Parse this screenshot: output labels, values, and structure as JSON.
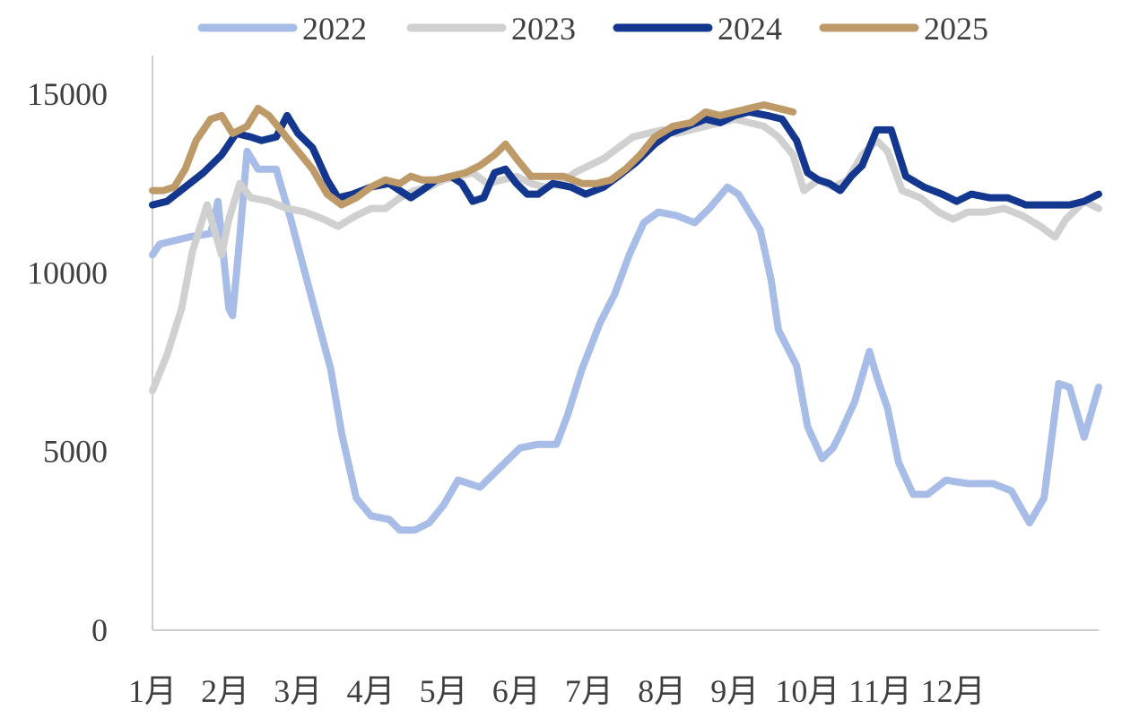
{
  "chart_data": {
    "type": "line",
    "title": "",
    "xlabel": "",
    "ylabel": "",
    "ylim": [
      0,
      15000
    ],
    "yticks": [
      "15000",
      "10000",
      "5000",
      "0"
    ],
    "x_categories": [
      "1月",
      "2月",
      "3月",
      "4月",
      "5月",
      "6月",
      "7月",
      "8月",
      "9月",
      "10月",
      "11月",
      "12月"
    ],
    "grid": false,
    "legend_position": "top",
    "series": [
      {
        "name": "2022",
        "color": "#a7bce6",
        "points": [
          [
            0,
            10500
          ],
          [
            0.1,
            10800
          ],
          [
            0.3,
            10900
          ],
          [
            0.5,
            11000
          ],
          [
            0.8,
            11100
          ],
          [
            0.9,
            12000
          ],
          [
            1.05,
            9000
          ],
          [
            1.1,
            8800
          ],
          [
            1.2,
            11000
          ],
          [
            1.3,
            13400
          ],
          [
            1.45,
            12900
          ],
          [
            1.7,
            12900
          ],
          [
            1.9,
            11500
          ],
          [
            2.2,
            9200
          ],
          [
            2.45,
            7300
          ],
          [
            2.6,
            5500
          ],
          [
            2.8,
            3700
          ],
          [
            3.0,
            3200
          ],
          [
            3.25,
            3100
          ],
          [
            3.4,
            2800
          ],
          [
            3.6,
            2800
          ],
          [
            3.8,
            3000
          ],
          [
            4.0,
            3500
          ],
          [
            4.2,
            4200
          ],
          [
            4.35,
            4100
          ],
          [
            4.5,
            4000
          ],
          [
            4.65,
            4300
          ],
          [
            4.85,
            4700
          ],
          [
            5.05,
            5100
          ],
          [
            5.3,
            5200
          ],
          [
            5.55,
            5200
          ],
          [
            5.7,
            6000
          ],
          [
            5.9,
            7300
          ],
          [
            6.15,
            8600
          ],
          [
            6.35,
            9400
          ],
          [
            6.55,
            10500
          ],
          [
            6.75,
            11400
          ],
          [
            6.95,
            11700
          ],
          [
            7.2,
            11600
          ],
          [
            7.45,
            11400
          ],
          [
            7.65,
            11800
          ],
          [
            7.9,
            12400
          ],
          [
            8.05,
            12200
          ],
          [
            8.2,
            11700
          ],
          [
            8.35,
            11200
          ],
          [
            8.5,
            9800
          ],
          [
            8.6,
            8400
          ],
          [
            8.85,
            7400
          ],
          [
            9.0,
            5700
          ],
          [
            9.2,
            4800
          ],
          [
            9.35,
            5100
          ],
          [
            9.45,
            5500
          ],
          [
            9.65,
            6400
          ],
          [
            9.85,
            7800
          ],
          [
            9.95,
            7100
          ],
          [
            10.1,
            6200
          ],
          [
            10.25,
            4700
          ],
          [
            10.45,
            3800
          ],
          [
            10.65,
            3800
          ],
          [
            10.9,
            4200
          ],
          [
            11.2,
            4100
          ],
          [
            11.55,
            4100
          ],
          [
            11.8,
            3900
          ],
          [
            12.05,
            3000
          ],
          [
            12.25,
            3700
          ],
          [
            12.45,
            6900
          ],
          [
            12.6,
            6800
          ],
          [
            12.8,
            5400
          ],
          [
            13.0,
            6800
          ]
        ]
      },
      {
        "name": "2023",
        "color": "#d0d0d0",
        "points": [
          [
            0,
            6700
          ],
          [
            0.2,
            7700
          ],
          [
            0.4,
            9000
          ],
          [
            0.55,
            10600
          ],
          [
            0.75,
            11900
          ],
          [
            0.85,
            11200
          ],
          [
            0.95,
            10500
          ],
          [
            1.05,
            11500
          ],
          [
            1.2,
            12500
          ],
          [
            1.35,
            12100
          ],
          [
            1.6,
            12000
          ],
          [
            1.85,
            11800
          ],
          [
            2.1,
            11700
          ],
          [
            2.35,
            11500
          ],
          [
            2.55,
            11300
          ],
          [
            2.8,
            11600
          ],
          [
            3.0,
            11800
          ],
          [
            3.2,
            11800
          ],
          [
            3.4,
            12100
          ],
          [
            3.6,
            12300
          ],
          [
            3.8,
            12400
          ],
          [
            4.0,
            12600
          ],
          [
            4.2,
            12700
          ],
          [
            4.4,
            12800
          ],
          [
            4.6,
            12500
          ],
          [
            4.8,
            12600
          ],
          [
            5.0,
            12700
          ],
          [
            5.2,
            12500
          ],
          [
            5.4,
            12400
          ],
          [
            5.6,
            12500
          ],
          [
            5.8,
            12800
          ],
          [
            6.0,
            13000
          ],
          [
            6.2,
            13200
          ],
          [
            6.4,
            13500
          ],
          [
            6.6,
            13800
          ],
          [
            6.8,
            13900
          ],
          [
            7.0,
            14000
          ],
          [
            7.2,
            13900
          ],
          [
            7.4,
            14000
          ],
          [
            7.6,
            14100
          ],
          [
            7.8,
            14200
          ],
          [
            8.0,
            14300
          ],
          [
            8.2,
            14200
          ],
          [
            8.4,
            14100
          ],
          [
            8.6,
            13800
          ],
          [
            8.8,
            13300
          ],
          [
            8.95,
            12300
          ],
          [
            9.15,
            12600
          ],
          [
            9.35,
            12400
          ],
          [
            9.55,
            12600
          ],
          [
            9.75,
            13300
          ],
          [
            9.95,
            13700
          ],
          [
            10.1,
            13400
          ],
          [
            10.3,
            12300
          ],
          [
            10.55,
            12100
          ],
          [
            10.8,
            11700
          ],
          [
            11.0,
            11500
          ],
          [
            11.2,
            11700
          ],
          [
            11.45,
            11700
          ],
          [
            11.7,
            11800
          ],
          [
            11.95,
            11600
          ],
          [
            12.2,
            11300
          ],
          [
            12.4,
            11000
          ],
          [
            12.55,
            11500
          ],
          [
            12.8,
            12000
          ],
          [
            13.0,
            11800
          ]
        ]
      },
      {
        "name": "2024",
        "color": "#13368f",
        "points": [
          [
            0,
            11900
          ],
          [
            0.2,
            12000
          ],
          [
            0.45,
            12400
          ],
          [
            0.7,
            12800
          ],
          [
            0.95,
            13300
          ],
          [
            1.15,
            13900
          ],
          [
            1.35,
            13800
          ],
          [
            1.5,
            13700
          ],
          [
            1.7,
            13800
          ],
          [
            1.85,
            14400
          ],
          [
            2.0,
            13900
          ],
          [
            2.2,
            13500
          ],
          [
            2.4,
            12600
          ],
          [
            2.55,
            12100
          ],
          [
            2.75,
            12200
          ],
          [
            3.0,
            12400
          ],
          [
            3.25,
            12500
          ],
          [
            3.4,
            12300
          ],
          [
            3.55,
            12100
          ],
          [
            3.7,
            12300
          ],
          [
            3.9,
            12600
          ],
          [
            4.1,
            12700
          ],
          [
            4.25,
            12500
          ],
          [
            4.4,
            12000
          ],
          [
            4.55,
            12100
          ],
          [
            4.7,
            12800
          ],
          [
            4.85,
            12900
          ],
          [
            5.0,
            12500
          ],
          [
            5.15,
            12200
          ],
          [
            5.3,
            12200
          ],
          [
            5.5,
            12500
          ],
          [
            5.75,
            12400
          ],
          [
            5.95,
            12200
          ],
          [
            6.2,
            12400
          ],
          [
            6.4,
            12700
          ],
          [
            6.65,
            13100
          ],
          [
            6.9,
            13600
          ],
          [
            7.1,
            13900
          ],
          [
            7.35,
            14100
          ],
          [
            7.6,
            14300
          ],
          [
            7.8,
            14200
          ],
          [
            8.0,
            14400
          ],
          [
            8.2,
            14500
          ],
          [
            8.45,
            14400
          ],
          [
            8.65,
            14300
          ],
          [
            8.85,
            13700
          ],
          [
            9.0,
            12800
          ],
          [
            9.15,
            12600
          ],
          [
            9.3,
            12500
          ],
          [
            9.45,
            12300
          ],
          [
            9.6,
            12700
          ],
          [
            9.75,
            13000
          ],
          [
            9.95,
            14000
          ],
          [
            10.15,
            14000
          ],
          [
            10.35,
            12700
          ],
          [
            10.6,
            12400
          ],
          [
            10.85,
            12200
          ],
          [
            11.05,
            12000
          ],
          [
            11.25,
            12200
          ],
          [
            11.5,
            12100
          ],
          [
            11.75,
            12100
          ],
          [
            12.0,
            11900
          ],
          [
            12.3,
            11900
          ],
          [
            12.6,
            11900
          ],
          [
            12.8,
            12000
          ],
          [
            13.0,
            12200
          ]
        ]
      },
      {
        "name": "2025",
        "color": "#bd9a68",
        "points": [
          [
            0,
            12300
          ],
          [
            0.15,
            12300
          ],
          [
            0.3,
            12400
          ],
          [
            0.45,
            12900
          ],
          [
            0.6,
            13700
          ],
          [
            0.8,
            14300
          ],
          [
            0.95,
            14400
          ],
          [
            1.1,
            13900
          ],
          [
            1.3,
            14100
          ],
          [
            1.45,
            14600
          ],
          [
            1.6,
            14400
          ],
          [
            1.8,
            13900
          ],
          [
            2.0,
            13400
          ],
          [
            2.2,
            12900
          ],
          [
            2.4,
            12200
          ],
          [
            2.6,
            11900
          ],
          [
            2.8,
            12100
          ],
          [
            3.0,
            12400
          ],
          [
            3.2,
            12600
          ],
          [
            3.4,
            12500
          ],
          [
            3.55,
            12700
          ],
          [
            3.7,
            12600
          ],
          [
            3.9,
            12600
          ],
          [
            4.1,
            12700
          ],
          [
            4.3,
            12800
          ],
          [
            4.5,
            13000
          ],
          [
            4.7,
            13300
          ],
          [
            4.85,
            13600
          ],
          [
            5.0,
            13200
          ],
          [
            5.2,
            12700
          ],
          [
            5.4,
            12700
          ],
          [
            5.65,
            12700
          ],
          [
            5.9,
            12500
          ],
          [
            6.1,
            12500
          ],
          [
            6.3,
            12600
          ],
          [
            6.5,
            12900
          ],
          [
            6.7,
            13300
          ],
          [
            6.9,
            13800
          ],
          [
            7.15,
            14100
          ],
          [
            7.4,
            14200
          ],
          [
            7.6,
            14500
          ],
          [
            7.8,
            14400
          ],
          [
            8.0,
            14500
          ],
          [
            8.2,
            14600
          ],
          [
            8.4,
            14700
          ],
          [
            8.6,
            14600
          ],
          [
            8.8,
            14500
          ]
        ]
      }
    ]
  }
}
